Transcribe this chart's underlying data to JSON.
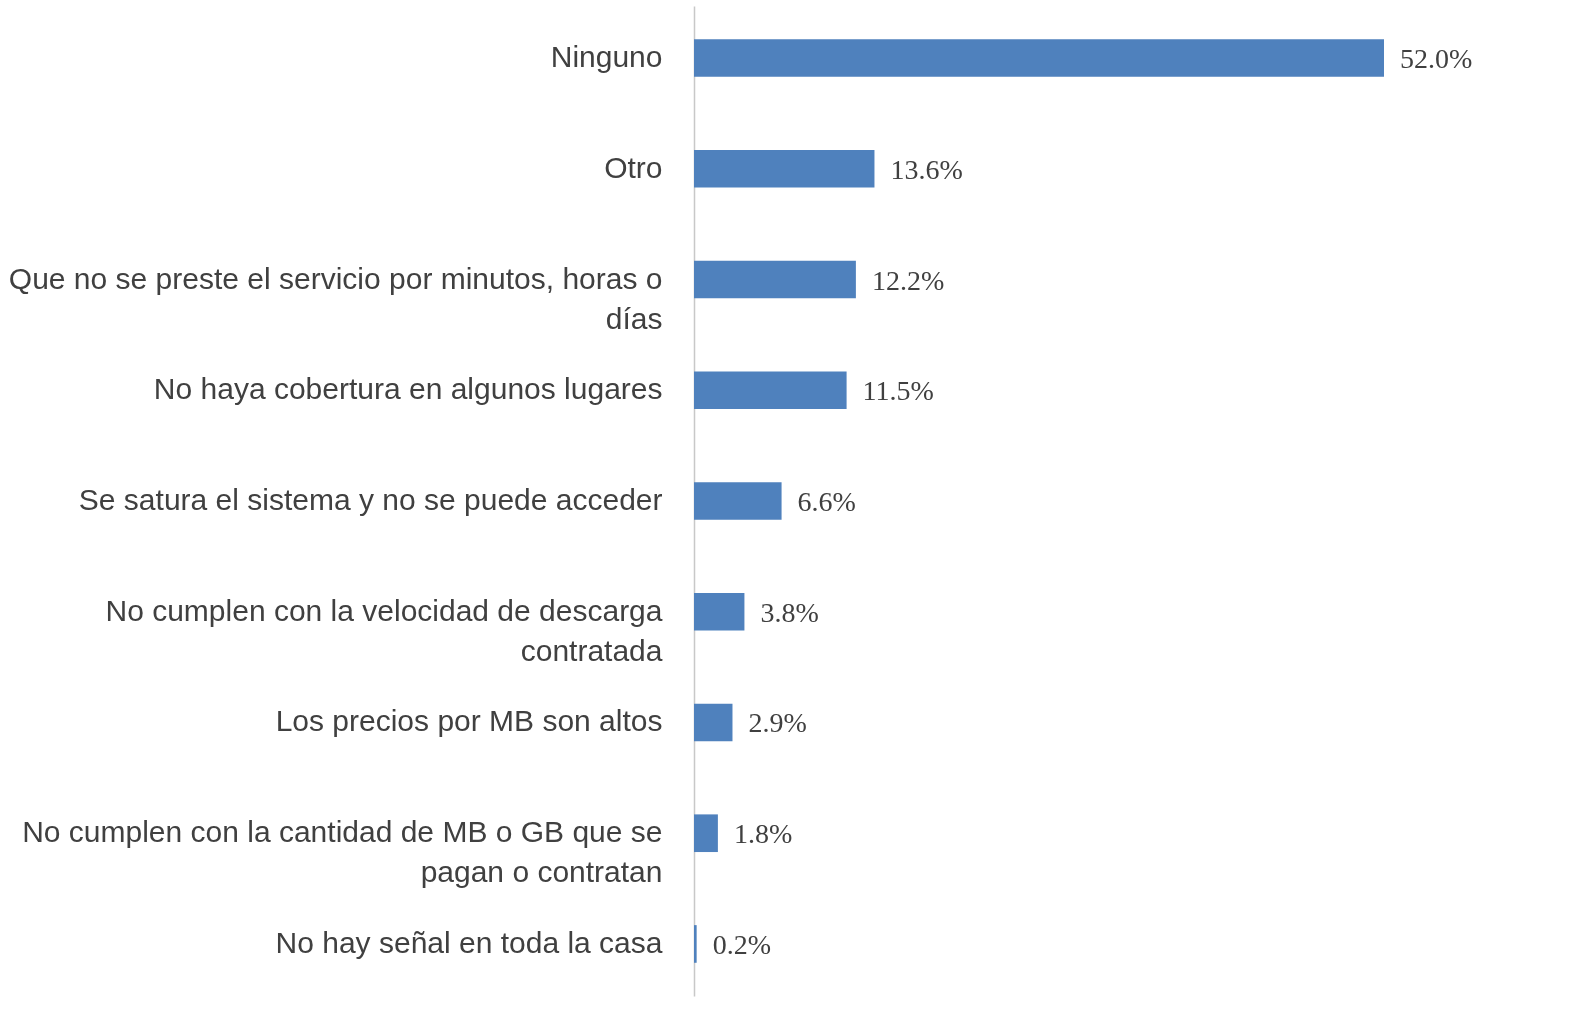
{
  "chart_data": {
    "type": "bar",
    "orientation": "horizontal",
    "categories": [
      "Ninguno",
      "Otro",
      "Que no se preste el servicio por minutos, horas o días",
      "No haya cobertura en algunos lugares",
      "Se satura el sistema y no se puede acceder",
      "No cumplen con la velocidad de descarga contratada",
      "Los precios por MB son altos",
      "No cumplen con la cantidad de MB o GB que se pagan o contratan",
      "No hay señal en toda la casa"
    ],
    "values": [
      52.0,
      13.6,
      12.2,
      11.5,
      6.6,
      3.8,
      2.9,
      1.8,
      0.2
    ],
    "value_labels": [
      "52.0%",
      "13.6%",
      "12.2%",
      "11.5%",
      "6.6%",
      "3.8%",
      "2.9%",
      "1.8%",
      "0.2%"
    ],
    "color": "#4f81bd"
  }
}
